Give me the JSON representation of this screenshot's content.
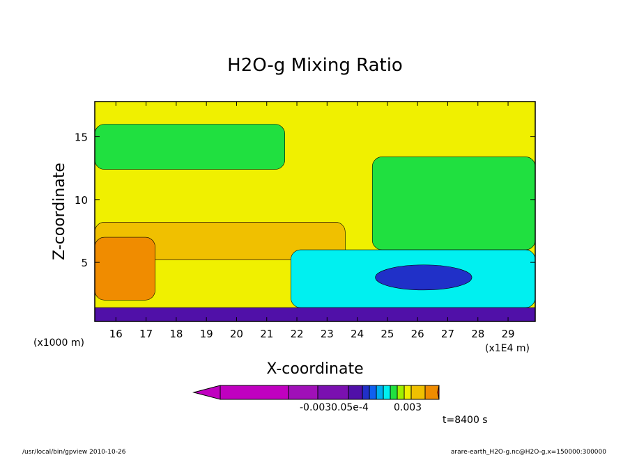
{
  "chart_data": {
    "type": "heatmap",
    "title": "H2O-g Mixing Ratio",
    "xlabel": "X-coordinate",
    "ylabel": "Z-coordinate",
    "x_unit_label": "(x1E4 m)",
    "y_unit_label": "(x1000 m)",
    "xlim": [
      15.3,
      29.9
    ],
    "ylim": [
      0.3,
      17.8
    ],
    "x_ticks": [
      16,
      17,
      18,
      19,
      20,
      21,
      22,
      23,
      24,
      25,
      26,
      27,
      28,
      29
    ],
    "y_ticks": [
      5,
      10,
      15
    ],
    "colorbar": {
      "labels": [
        "-0.0030.05e-4",
        "0.003"
      ],
      "colors": [
        "#c000c0",
        "#a010b8",
        "#7a10b0",
        "#5010a8",
        "#2030c8",
        "#1060f0",
        "#00b0f0",
        "#00f0f0",
        "#20e040",
        "#a0f000",
        "#f0f000",
        "#f0c000",
        "#f08c00",
        "#ff2020"
      ]
    },
    "regions": [
      {
        "name": "background",
        "color": "#f0f000"
      },
      {
        "name": "upper-moist",
        "color": "#20e040",
        "x": [
          15.3,
          21.6
        ],
        "y": [
          12.4,
          16.0
        ]
      },
      {
        "name": "right-moist",
        "color": "#20e040",
        "x": [
          24.5,
          29.9
        ],
        "y": [
          6.0,
          13.4
        ]
      },
      {
        "name": "orange-band",
        "color": "#f0c000",
        "x": [
          15.3,
          23.6
        ],
        "y": [
          5.2,
          8.2
        ]
      },
      {
        "name": "dry-core",
        "color": "#f08c00",
        "x": [
          15.3,
          17.3
        ],
        "y": [
          2.0,
          7.0
        ]
      },
      {
        "name": "cyan-layer",
        "color": "#00f0f0",
        "x": [
          21.8,
          29.9
        ],
        "y": [
          1.4,
          6.0
        ]
      },
      {
        "name": "blue-core",
        "color": "#2030c8",
        "x": [
          24.6,
          27.8
        ],
        "y": [
          2.8,
          4.8
        ]
      },
      {
        "name": "surface-layer",
        "color": "#5010a8",
        "x": [
          15.3,
          29.9
        ],
        "y": [
          0.3,
          1.4
        ]
      }
    ],
    "annotation": "t=8400 s"
  },
  "footer": {
    "left": "/usr/local/bin/gpview   2010-10-26",
    "right": "arare-earth_H2O-g.nc@H2O-g,x=150000:300000"
  }
}
